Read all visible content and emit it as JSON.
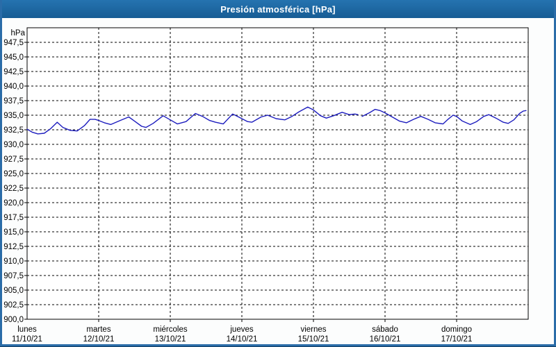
{
  "window": {
    "title": "Presión atmosférica [hPa]"
  },
  "colors": {
    "titlebar_start": "#2573b0",
    "titlebar_end": "#175d94",
    "titlebar_text": "#ffffff",
    "page_border": "#2a6ca8",
    "page_border_dark": "#143f63",
    "page_bg": "#fcfdfd",
    "plot_bg": "#ffffff",
    "plot_border": "#000000",
    "grid": "#000000",
    "label": "#000000",
    "line": "#1c1cbe"
  },
  "chart_data": {
    "type": "line",
    "title": "Presión atmosférica [hPa]",
    "unit_label": "hPa",
    "ylabel": "hPa",
    "xlabel": "",
    "ylim": [
      900,
      950
    ],
    "ytick_step": 2.5,
    "grid": "dashed",
    "legend": "none",
    "yticks": [
      {
        "value": 947.5,
        "label": "947,5"
      },
      {
        "value": 945.0,
        "label": "945,0"
      },
      {
        "value": 942.5,
        "label": "942,5"
      },
      {
        "value": 940.0,
        "label": "940,0"
      },
      {
        "value": 937.5,
        "label": "937,5"
      },
      {
        "value": 935.0,
        "label": "935,0"
      },
      {
        "value": 932.5,
        "label": "932,5"
      },
      {
        "value": 930.0,
        "label": "930,0"
      },
      {
        "value": 927.5,
        "label": "927,5"
      },
      {
        "value": 925.0,
        "label": "925,0"
      },
      {
        "value": 922.5,
        "label": "922,5"
      },
      {
        "value": 920.0,
        "label": "920,0"
      },
      {
        "value": 917.5,
        "label": "917,5"
      },
      {
        "value": 915.0,
        "label": "915,0"
      },
      {
        "value": 912.5,
        "label": "912,5"
      },
      {
        "value": 910.0,
        "label": "910,0"
      },
      {
        "value": 907.5,
        "label": "907,5"
      },
      {
        "value": 905.0,
        "label": "905,0"
      },
      {
        "value": 902.5,
        "label": "902,5"
      },
      {
        "value": 900.0,
        "label": "900,0"
      }
    ],
    "x_days": [
      {
        "name": "lunes",
        "date": "11/10/21"
      },
      {
        "name": "martes",
        "date": "12/10/21"
      },
      {
        "name": "miércoles",
        "date": "13/10/21"
      },
      {
        "name": "jueves",
        "date": "14/10/21"
      },
      {
        "name": "viernes",
        "date": "15/10/21"
      },
      {
        "name": "sábado",
        "date": "16/10/21"
      },
      {
        "name": "domingo",
        "date": "17/10/21"
      }
    ],
    "series": [
      {
        "name": "presión atmosférica",
        "units": "hPa",
        "x_units": "days from 11/10/21 00:00",
        "segments": [
          [
            [
              0.0,
              932.6
            ],
            [
              0.07,
              932.1
            ],
            [
              0.15,
              931.8
            ],
            [
              0.24,
              931.9
            ],
            [
              0.33,
              932.7
            ],
            [
              0.42,
              933.8
            ],
            [
              0.5,
              932.9
            ],
            [
              0.6,
              932.4
            ],
            [
              0.7,
              932.3
            ],
            [
              0.8,
              933.2
            ],
            [
              0.88,
              934.3
            ],
            [
              0.95,
              934.3
            ],
            [
              1.0,
              934.1
            ],
            [
              1.08,
              933.7
            ],
            [
              1.17,
              933.4
            ],
            [
              1.3,
              934.1
            ],
            [
              1.42,
              934.7
            ],
            [
              1.5,
              934.0
            ],
            [
              1.6,
              933.1
            ],
            [
              1.66,
              932.9
            ],
            [
              1.76,
              933.6
            ],
            [
              1.9,
              934.9
            ],
            [
              2.0,
              934.2
            ],
            [
              2.1,
              933.5
            ],
            [
              2.22,
              933.9
            ],
            [
              2.35,
              935.3
            ],
            [
              2.45,
              934.8
            ],
            [
              2.55,
              934.1
            ],
            [
              2.63,
              933.8
            ],
            [
              2.74,
              933.5
            ],
            [
              2.87,
              935.2
            ],
            [
              2.94,
              934.8
            ],
            [
              3.0,
              934.4
            ],
            [
              3.08,
              933.9
            ],
            [
              3.14,
              933.8
            ],
            [
              3.27,
              934.7
            ],
            [
              3.36,
              935.0
            ],
            [
              3.48,
              934.4
            ],
            [
              3.6,
              934.2
            ],
            [
              3.7,
              934.8
            ],
            [
              3.8,
              935.6
            ],
            [
              3.92,
              936.4
            ],
            [
              4.0,
              935.9
            ],
            [
              4.1,
              934.9
            ],
            [
              4.18,
              934.5
            ],
            [
              4.28,
              934.9
            ],
            [
              4.4,
              935.5
            ],
            [
              4.5,
              935.1
            ],
            [
              4.58,
              935.2
            ],
            [
              4.62,
              935.1
            ]
          ],
          [
            [
              4.68,
              934.8
            ],
            [
              4.78,
              935.4
            ],
            [
              4.86,
              936.0
            ],
            [
              4.93,
              935.8
            ],
            [
              5.0,
              935.4
            ],
            [
              5.1,
              934.7
            ],
            [
              5.2,
              934.0
            ],
            [
              5.3,
              933.7
            ],
            [
              5.4,
              934.3
            ],
            [
              5.5,
              934.8
            ],
            [
              5.6,
              934.3
            ],
            [
              5.7,
              933.7
            ],
            [
              5.81,
              933.5
            ],
            [
              5.88,
              934.3
            ],
            [
              5.95,
              935.0
            ],
            [
              6.0,
              934.8
            ],
            [
              6.08,
              934.0
            ],
            [
              6.19,
              933.4
            ],
            [
              6.28,
              933.9
            ],
            [
              6.38,
              934.8
            ],
            [
              6.45,
              935.1
            ],
            [
              6.55,
              934.5
            ],
            [
              6.65,
              933.8
            ],
            [
              6.72,
              933.6
            ],
            [
              6.8,
              934.2
            ],
            [
              6.88,
              935.3
            ],
            [
              6.93,
              935.7
            ],
            [
              6.97,
              935.8
            ]
          ]
        ]
      }
    ]
  }
}
